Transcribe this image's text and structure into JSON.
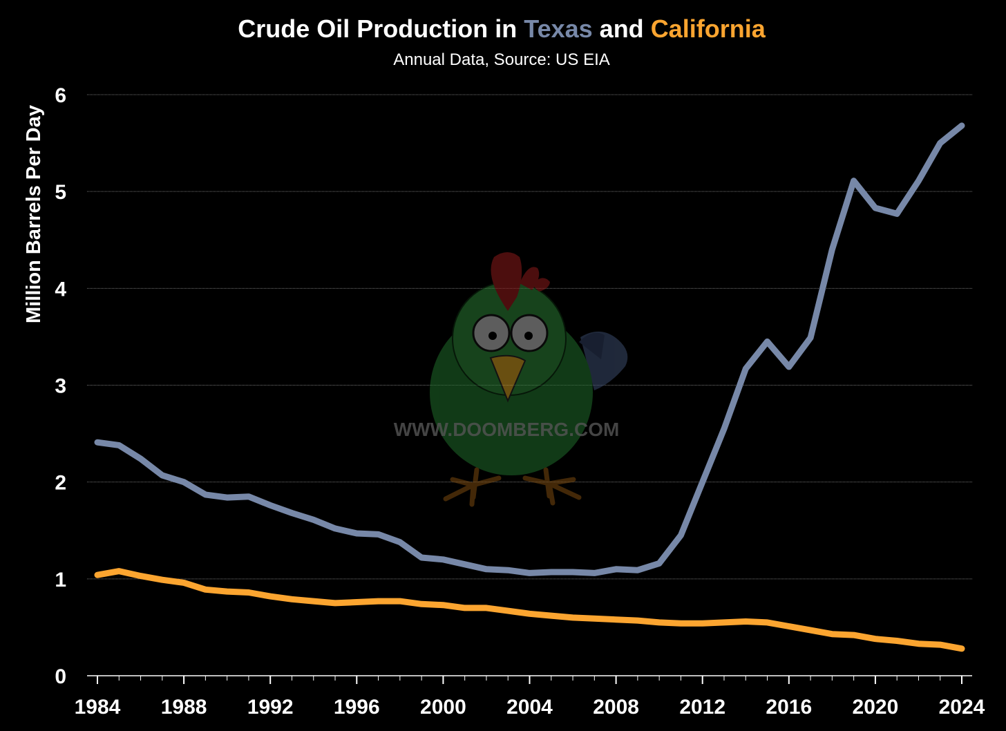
{
  "colors": {
    "background": "#000000",
    "texas": "#7788a8",
    "california": "#fca530",
    "grid": "#777777",
    "axis": "#ffffff"
  },
  "watermark": {
    "text": "WWW.DOOMBERG.COM",
    "icon": "chicken-mascot-icon"
  },
  "chart_data": {
    "type": "line",
    "title_parts": [
      "Crude Oil Production in ",
      "Texas",
      " and ",
      "California"
    ],
    "subtitle": "Annual Data, Source: US EIA",
    "xlabel": "",
    "ylabel": "Million Barrels Per Day",
    "xlim": [
      1984,
      2024
    ],
    "ylim": [
      0,
      6
    ],
    "grid": true,
    "xticks": [
      1984,
      1988,
      1992,
      1996,
      2000,
      2004,
      2008,
      2012,
      2016,
      2020,
      2024
    ],
    "yticks": [
      0,
      1,
      2,
      3,
      4,
      5,
      6
    ],
    "x": [
      1984,
      1985,
      1986,
      1987,
      1988,
      1989,
      1990,
      1991,
      1992,
      1993,
      1994,
      1995,
      1996,
      1997,
      1998,
      1999,
      2000,
      2001,
      2002,
      2003,
      2004,
      2005,
      2006,
      2007,
      2008,
      2009,
      2010,
      2011,
      2012,
      2013,
      2014,
      2015,
      2016,
      2017,
      2018,
      2019,
      2020,
      2021,
      2022,
      2023,
      2024
    ],
    "series": [
      {
        "name": "Texas",
        "values": [
          2.41,
          2.38,
          2.24,
          2.07,
          2.0,
          1.87,
          1.84,
          1.85,
          1.76,
          1.68,
          1.61,
          1.52,
          1.47,
          1.46,
          1.38,
          1.22,
          1.2,
          1.15,
          1.1,
          1.09,
          1.06,
          1.07,
          1.07,
          1.06,
          1.1,
          1.09,
          1.16,
          1.45,
          2.0,
          2.55,
          3.17,
          3.45,
          3.19,
          3.49,
          4.4,
          5.11,
          4.83,
          4.77,
          5.11,
          5.5,
          5.68
        ]
      },
      {
        "name": "California",
        "values": [
          1.04,
          1.08,
          1.03,
          0.99,
          0.96,
          0.89,
          0.87,
          0.86,
          0.82,
          0.79,
          0.77,
          0.75,
          0.76,
          0.77,
          0.77,
          0.74,
          0.73,
          0.7,
          0.7,
          0.67,
          0.64,
          0.62,
          0.6,
          0.59,
          0.58,
          0.57,
          0.55,
          0.54,
          0.54,
          0.55,
          0.56,
          0.55,
          0.51,
          0.47,
          0.43,
          0.42,
          0.38,
          0.36,
          0.33,
          0.32,
          0.28
        ]
      }
    ]
  }
}
